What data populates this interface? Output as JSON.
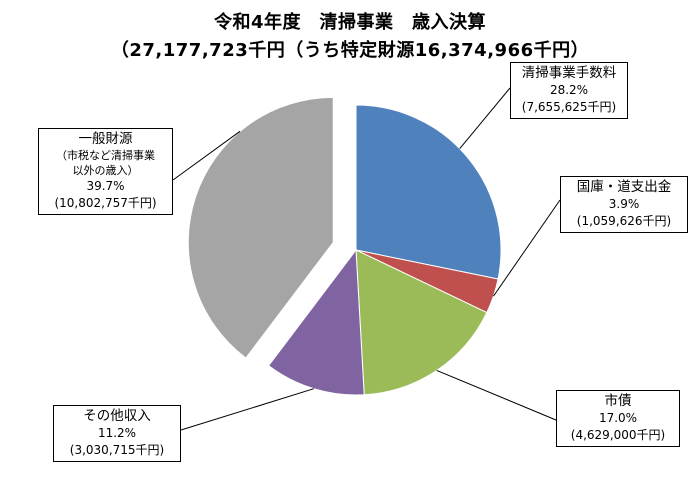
{
  "chart_data": {
    "type": "pie",
    "title": "令和4年度　清掃事業　歳入決算",
    "subtitle": "（27,177,723千円（うち特定財源16,374,966千円）",
    "slices": [
      {
        "name": "清掃事業手数料",
        "percent": 28.2,
        "percent_label": "28.2%",
        "amount_label": "(7,655,625千円)",
        "amount": 7655625,
        "color": "#4f81bd",
        "explode": false
      },
      {
        "name": "国庫・道支出金",
        "percent": 3.9,
        "percent_label": "3.9%",
        "amount_label": "(1,059,626千円)",
        "amount": 1059626,
        "color": "#c0504d",
        "explode": false
      },
      {
        "name": "市債",
        "percent": 17.0,
        "percent_label": "17.0%",
        "amount_label": "(4,629,000千円)",
        "amount": 4629000,
        "color": "#9bbb59",
        "explode": false
      },
      {
        "name": "その他収入",
        "percent": 11.2,
        "percent_label": "11.2%",
        "amount_label": "(3,030,715千円)",
        "amount": 3030715,
        "color": "#8064a2",
        "explode": false
      },
      {
        "name": "一般財源",
        "sub_note": "（市税など清掃事業以外の歳入）",
        "sub_note_lines": [
          "（市税など清掃事業",
          "以外の歳入）"
        ],
        "percent": 39.7,
        "percent_label": "39.7%",
        "amount_label": "(10,802,757千円)",
        "amount": 10802757,
        "color": "#a5a5a5",
        "explode": true
      }
    ]
  }
}
